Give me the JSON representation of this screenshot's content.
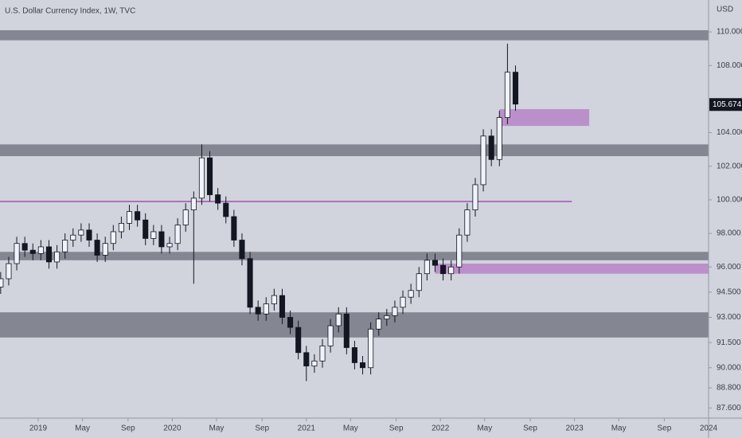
{
  "chart_data": {
    "type": "candlestick",
    "title": "U.S. Dollar Currency Index, 1W, TVC",
    "y_unit": "USD",
    "x": [
      2018.72,
      2018.78,
      2018.84,
      2018.9,
      2018.96,
      2019.02,
      2019.08,
      2019.14,
      2019.2,
      2019.26,
      2019.32,
      2019.38,
      2019.44,
      2019.5,
      2019.56,
      2019.62,
      2019.68,
      2019.74,
      2019.8,
      2019.86,
      2019.92,
      2019.98,
      2020.04,
      2020.1,
      2020.16,
      2020.22,
      2020.28,
      2020.34,
      2020.4,
      2020.46,
      2020.52,
      2020.58,
      2020.64,
      2020.7,
      2020.76,
      2020.82,
      2020.88,
      2020.94,
      2021.0,
      2021.06,
      2021.12,
      2021.18,
      2021.24,
      2021.3,
      2021.36,
      2021.42,
      2021.48,
      2021.54,
      2021.6,
      2021.66,
      2021.72,
      2021.78,
      2021.84,
      2021.9,
      2021.96,
      2022.02,
      2022.08,
      2022.14,
      2022.2,
      2022.26,
      2022.32,
      2022.38,
      2022.44,
      2022.5,
      2022.56
    ],
    "open": [
      94.8,
      95.3,
      96.2,
      97.4,
      97.0,
      96.8,
      97.2,
      96.3,
      96.9,
      97.6,
      97.9,
      98.2,
      97.6,
      96.7,
      97.4,
      98.1,
      98.6,
      99.3,
      98.8,
      97.7,
      98.1,
      97.2,
      97.4,
      98.5,
      99.4,
      100.1,
      102.5,
      100.3,
      99.8,
      99.0,
      97.6,
      96.5,
      93.6,
      93.2,
      93.8,
      94.3,
      93.0,
      92.4,
      90.9,
      90.1,
      90.4,
      91.3,
      92.5,
      93.2,
      91.2,
      90.3,
      90.0,
      92.3,
      92.9,
      93.1,
      93.6,
      94.2,
      94.6,
      95.6,
      96.4,
      96.1,
      95.6,
      96.0,
      97.9,
      99.4,
      100.9,
      103.8,
      102.4,
      104.9,
      107.6
    ],
    "high": [
      95.7,
      96.6,
      97.8,
      97.8,
      97.4,
      97.6,
      97.6,
      97.3,
      98.0,
      98.3,
      98.6,
      98.6,
      98.0,
      97.8,
      98.5,
      99.0,
      99.7,
      99.7,
      99.2,
      98.5,
      98.5,
      97.8,
      98.9,
      99.8,
      100.5,
      103.3,
      102.9,
      100.7,
      100.2,
      99.4,
      98.0,
      96.9,
      94.0,
      94.2,
      94.7,
      94.7,
      93.4,
      92.8,
      91.3,
      90.8,
      91.7,
      92.9,
      93.6,
      93.6,
      91.6,
      90.7,
      92.7,
      93.3,
      93.5,
      94.0,
      94.6,
      95.0,
      96.0,
      96.8,
      96.8,
      96.5,
      96.4,
      98.3,
      99.8,
      101.3,
      104.2,
      104.2,
      105.3,
      109.3,
      108.0
    ],
    "low": [
      94.4,
      94.9,
      95.8,
      96.6,
      96.4,
      96.4,
      95.9,
      95.9,
      96.5,
      97.2,
      97.5,
      97.2,
      96.3,
      96.3,
      97.0,
      97.7,
      98.2,
      98.4,
      97.3,
      97.3,
      96.8,
      96.8,
      97.0,
      98.1,
      95.0,
      99.7,
      99.9,
      99.4,
      98.6,
      97.2,
      96.1,
      93.2,
      92.8,
      92.8,
      93.4,
      92.6,
      92.0,
      90.5,
      89.2,
      89.7,
      90.0,
      90.9,
      92.1,
      90.8,
      89.9,
      89.6,
      89.6,
      91.9,
      92.5,
      92.7,
      93.2,
      93.8,
      94.2,
      95.2,
      95.7,
      95.2,
      95.2,
      95.6,
      97.5,
      99.0,
      100.5,
      102.0,
      102.0,
      104.5,
      105.3
    ],
    "close": [
      95.3,
      96.2,
      97.4,
      97.0,
      96.8,
      97.2,
      96.3,
      96.9,
      97.6,
      97.9,
      98.2,
      97.6,
      96.7,
      97.4,
      98.1,
      98.6,
      99.3,
      98.8,
      97.7,
      98.1,
      97.2,
      97.4,
      98.5,
      99.4,
      100.1,
      102.5,
      100.3,
      99.8,
      99.0,
      97.6,
      96.5,
      93.6,
      93.2,
      93.8,
      94.3,
      93.0,
      92.4,
      90.9,
      90.1,
      90.4,
      91.3,
      92.5,
      93.2,
      91.2,
      90.3,
      90.0,
      92.3,
      92.9,
      93.1,
      93.6,
      94.2,
      94.6,
      95.6,
      96.4,
      96.1,
      95.6,
      96.0,
      97.9,
      99.4,
      100.9,
      103.8,
      102.4,
      104.9,
      107.6,
      105.7
    ],
    "up_color": "#f0f3fa",
    "down_color": "#131722",
    "last_price": {
      "value": 105.674,
      "label": "105.674"
    },
    "zones": [
      {
        "y": [
          109.5,
          110.1
        ],
        "x": [
          2018.715,
          2024.0
        ],
        "color": "#7b7e89"
      },
      {
        "y": [
          102.6,
          103.3
        ],
        "x": [
          2018.715,
          2024.0
        ],
        "color": "#7b7e89"
      },
      {
        "y": [
          96.4,
          96.9
        ],
        "x": [
          2018.715,
          2024.0
        ],
        "color": "#7b7e89"
      },
      {
        "y": [
          91.8,
          93.3
        ],
        "x": [
          2018.715,
          2024.0
        ],
        "color": "#7b7e89"
      },
      {
        "y": [
          104.4,
          105.4
        ],
        "x": [
          2022.44,
          2023.11
        ],
        "color": "#b888c8"
      },
      {
        "y": [
          95.6,
          96.2
        ],
        "x": [
          2021.96,
          2024.0
        ],
        "color": "#b888c8"
      }
    ],
    "lines": [
      {
        "y": 99.9,
        "x": [
          2018.715,
          2022.98
        ],
        "color": "#b070c0"
      }
    ],
    "xlim": [
      2018.715,
      2024.0
    ],
    "ylim": [
      87.0,
      111.9
    ],
    "xticks": [
      {
        "value": 2019,
        "label": "2019"
      },
      {
        "value": 2019.33,
        "label": "May"
      },
      {
        "value": 2019.67,
        "label": "Sep"
      },
      {
        "value": 2020,
        "label": "2020"
      },
      {
        "value": 2020.33,
        "label": "May"
      },
      {
        "value": 2020.67,
        "label": "Sep"
      },
      {
        "value": 2021,
        "label": "2021"
      },
      {
        "value": 2021.33,
        "label": "May"
      },
      {
        "value": 2021.67,
        "label": "Sep"
      },
      {
        "value": 2022,
        "label": "2022"
      },
      {
        "value": 2022.33,
        "label": "May"
      },
      {
        "value": 2022.67,
        "label": "Sep"
      },
      {
        "value": 2023,
        "label": "2023"
      },
      {
        "value": 2023.33,
        "label": "May"
      },
      {
        "value": 2023.67,
        "label": "Sep"
      },
      {
        "value": 2024,
        "label": "2024"
      }
    ],
    "yticks": [
      {
        "value": 110,
        "label": "110.000"
      },
      {
        "value": 108,
        "label": "108.000"
      },
      {
        "value": 104,
        "label": "104.000"
      },
      {
        "value": 102,
        "label": "102.000"
      },
      {
        "value": 100,
        "label": "100.000"
      },
      {
        "value": 98,
        "label": "98.000"
      },
      {
        "value": 96,
        "label": "96.000"
      },
      {
        "value": 94.5,
        "label": "94.500"
      },
      {
        "value": 93,
        "label": "93.000"
      },
      {
        "value": 91.5,
        "label": "91.500"
      },
      {
        "value": 90,
        "label": "90.000"
      },
      {
        "value": 88.8,
        "label": "88.800"
      },
      {
        "value": 87.6,
        "label": "87.600"
      }
    ]
  }
}
